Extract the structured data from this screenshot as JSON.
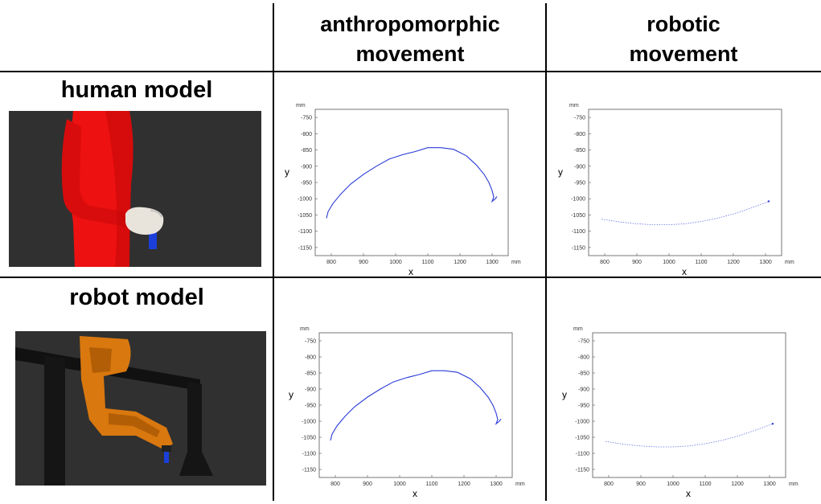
{
  "headers": {
    "col1": "anthropomorphic movement",
    "col2": "robotic movement",
    "row1": "human model",
    "row2": "robot model"
  },
  "colors": {
    "trajectory": "#2a3bd6",
    "human_body": "#ee1111",
    "robot_arm": "#d9780f",
    "background": "#303030"
  },
  "chart_data": [
    {
      "id": "human-anthropomorphic",
      "type": "line",
      "xlabel": "x",
      "ylabel": "y",
      "xunit": "mm",
      "yunit": "mm",
      "xlim": [
        750,
        1350
      ],
      "ylim": [
        -1175,
        -725
      ],
      "xticks": [
        "800",
        "900",
        "1000",
        "1100",
        "1200",
        "1300"
      ],
      "yticks": [
        "-750",
        "-800",
        "-850",
        "-900",
        "-950",
        "-1000",
        "-1050",
        "-1100",
        "-1150"
      ],
      "series": [
        {
          "x": [
            785,
            790,
            805,
            830,
            860,
            900,
            940,
            980,
            1020,
            1060,
            1100,
            1140,
            1180,
            1220,
            1250,
            1275,
            1290,
            1300,
            1305,
            1300,
            1310,
            1315
          ],
          "y": [
            -1060,
            -1040,
            -1015,
            -985,
            -955,
            -925,
            -900,
            -878,
            -865,
            -855,
            -843,
            -843,
            -848,
            -868,
            -895,
            -925,
            -950,
            -975,
            -995,
            -1008,
            -1000,
            -993
          ]
        }
      ]
    },
    {
      "id": "human-robotic",
      "type": "line",
      "xlabel": "x",
      "ylabel": "y",
      "xunit": "mm",
      "yunit": "mm",
      "xlim": [
        750,
        1350
      ],
      "ylim": [
        -1175,
        -725
      ],
      "xticks": [
        "800",
        "900",
        "1000",
        "1100",
        "1200",
        "1300"
      ],
      "yticks": [
        "-750",
        "-800",
        "-850",
        "-900",
        "-950",
        "-1000",
        "-1050",
        "-1100",
        "-1150"
      ],
      "series": [
        {
          "dashed": true,
          "x": [
            790,
            850,
            900,
            950,
            1000,
            1050,
            1100,
            1150,
            1200,
            1250,
            1300,
            1310
          ],
          "y": [
            -1063,
            -1072,
            -1077,
            -1080,
            -1080,
            -1077,
            -1070,
            -1060,
            -1047,
            -1030,
            -1012,
            -1008
          ]
        }
      ]
    },
    {
      "id": "robot-anthropomorphic",
      "type": "line",
      "xlabel": "x",
      "ylabel": "y",
      "xunit": "mm",
      "yunit": "mm",
      "xlim": [
        750,
        1350
      ],
      "ylim": [
        -1175,
        -725
      ],
      "xticks": [
        "800",
        "900",
        "1000",
        "1100",
        "1200",
        "1300"
      ],
      "yticks": [
        "-750",
        "-800",
        "-850",
        "-900",
        "-950",
        "-1000",
        "-1050",
        "-1100",
        "-1150"
      ],
      "series": [
        {
          "x": [
            785,
            790,
            805,
            830,
            860,
            900,
            940,
            980,
            1020,
            1060,
            1100,
            1140,
            1180,
            1220,
            1250,
            1275,
            1290,
            1300,
            1305,
            1300,
            1310,
            1315
          ],
          "y": [
            -1060,
            -1040,
            -1015,
            -985,
            -955,
            -925,
            -900,
            -878,
            -865,
            -855,
            -843,
            -843,
            -848,
            -868,
            -895,
            -925,
            -950,
            -975,
            -995,
            -1008,
            -1000,
            -993
          ]
        }
      ]
    },
    {
      "id": "robot-robotic",
      "type": "line",
      "xlabel": "x",
      "ylabel": "y",
      "xunit": "mm",
      "yunit": "mm",
      "xlim": [
        750,
        1350
      ],
      "ylim": [
        -1175,
        -725
      ],
      "xticks": [
        "800",
        "900",
        "1000",
        "1100",
        "1200",
        "1300"
      ],
      "yticks": [
        "-750",
        "-800",
        "-850",
        "-900",
        "-950",
        "-1000",
        "-1050",
        "-1100",
        "-1150"
      ],
      "series": [
        {
          "dashed": true,
          "x": [
            790,
            850,
            900,
            950,
            1000,
            1050,
            1100,
            1150,
            1200,
            1250,
            1300,
            1310
          ],
          "y": [
            -1063,
            -1072,
            -1077,
            -1080,
            -1080,
            -1077,
            -1070,
            -1060,
            -1047,
            -1030,
            -1012,
            -1008
          ]
        }
      ]
    }
  ]
}
